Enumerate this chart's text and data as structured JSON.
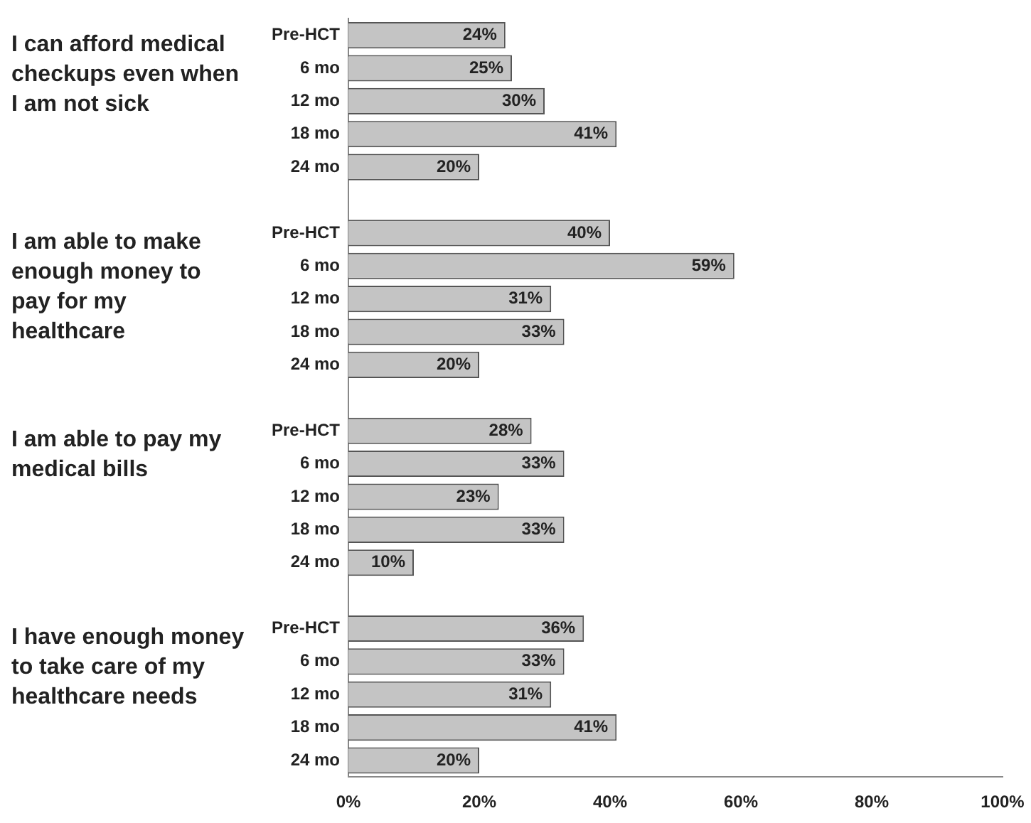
{
  "chart_data": {
    "type": "bar",
    "orientation": "horizontal",
    "categories": [
      "Pre-HCT",
      "6 mo",
      "12 mo",
      "18 mo",
      "24 mo",
      null,
      "Pre-HCT",
      "6 mo",
      "12 mo",
      "18 mo",
      "24 mo",
      null,
      "Pre-HCT",
      "6 mo",
      "12 mo",
      "18 mo",
      "24 mo",
      null,
      "Pre-HCT",
      "6 mo",
      "12 mo",
      "18 mo",
      "24 mo"
    ],
    "values": [
      24,
      25,
      30,
      41,
      20,
      null,
      40,
      59,
      31,
      33,
      20,
      null,
      28,
      33,
      23,
      33,
      10,
      null,
      36,
      33,
      31,
      41,
      20
    ],
    "value_labels": [
      "24%",
      "25%",
      "30%",
      "41%",
      "20%",
      null,
      "40%",
      "59%",
      "31%",
      "33%",
      "20%",
      null,
      "28%",
      "33%",
      "23%",
      "33%",
      "10%",
      null,
      "36%",
      "33%",
      "31%",
      "41%",
      "20%"
    ],
    "color": "#c4c4c4",
    "xlim": [
      0,
      100
    ],
    "xticks": [
      {
        "value": 0,
        "label": "0%"
      },
      {
        "value": 20,
        "label": "20%"
      },
      {
        "value": 40,
        "label": "40%"
      },
      {
        "value": 60,
        "label": "60%"
      },
      {
        "value": 80,
        "label": "80%"
      },
      {
        "value": 100,
        "label": "100%"
      }
    ],
    "grid": false,
    "legend": false,
    "annotations": [
      "I can afford medical checkups even when I am not sick",
      "I am able to make enough money to pay for my healthcare",
      "I am able to pay my medical bills",
      "I have enough money to take care of my healthcare needs"
    ]
  }
}
